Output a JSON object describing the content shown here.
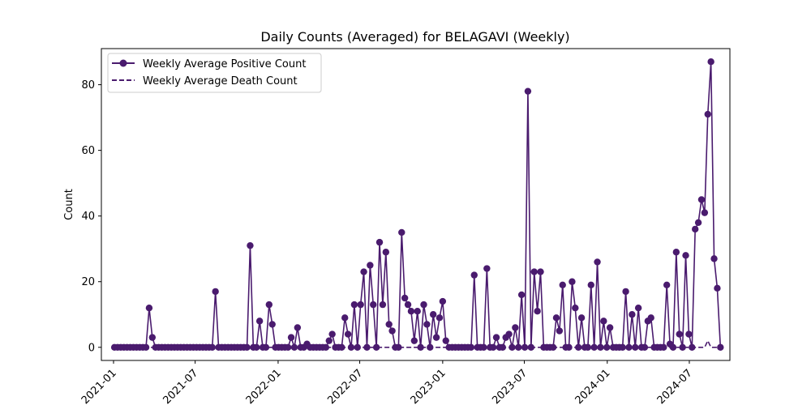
{
  "chart_data": {
    "type": "line",
    "title": "Daily Counts (Averaged) for BELAGAVI (Weekly)",
    "xlabel": "",
    "ylabel": "Count",
    "ylim": [
      -4,
      91
    ],
    "xlim": [
      "2020-12-05",
      "2024-09-29"
    ],
    "x_ticks": [
      "2021-01-01",
      "2021-07-01",
      "2022-01-01",
      "2022-07-01",
      "2023-01-01",
      "2023-07-01",
      "2024-01-01",
      "2024-07-01"
    ],
    "x_tick_labels": [
      "2021-01",
      "2021-07",
      "2022-01",
      "2022-07",
      "2023-01",
      "2023-07",
      "2024-01",
      "2024-07"
    ],
    "y_ticks": [
      0,
      20,
      40,
      60,
      80
    ],
    "grid": false,
    "legend_position": "top-left",
    "series": [
      {
        "name": "Weekly Average Positive Count",
        "style": "solid-marker",
        "color": "#4a1b6e",
        "points": [
          [
            "2021-01-03",
            0
          ],
          [
            "2021-01-10",
            0
          ],
          [
            "2021-01-17",
            0
          ],
          [
            "2021-01-24",
            0
          ],
          [
            "2021-01-31",
            0
          ],
          [
            "2021-02-07",
            0
          ],
          [
            "2021-02-14",
            0
          ],
          [
            "2021-02-21",
            0
          ],
          [
            "2021-02-28",
            0
          ],
          [
            "2021-03-07",
            0
          ],
          [
            "2021-03-14",
            0
          ],
          [
            "2021-03-21",
            12
          ],
          [
            "2021-03-28",
            3
          ],
          [
            "2021-04-04",
            0
          ],
          [
            "2021-04-11",
            0
          ],
          [
            "2021-04-18",
            0
          ],
          [
            "2021-04-25",
            0
          ],
          [
            "2021-05-02",
            0
          ],
          [
            "2021-05-09",
            0
          ],
          [
            "2021-05-16",
            0
          ],
          [
            "2021-05-23",
            0
          ],
          [
            "2021-05-30",
            0
          ],
          [
            "2021-06-06",
            0
          ],
          [
            "2021-06-13",
            0
          ],
          [
            "2021-06-20",
            0
          ],
          [
            "2021-06-27",
            0
          ],
          [
            "2021-07-04",
            0
          ],
          [
            "2021-07-11",
            0
          ],
          [
            "2021-07-18",
            0
          ],
          [
            "2021-07-25",
            0
          ],
          [
            "2021-08-01",
            0
          ],
          [
            "2021-08-08",
            0
          ],
          [
            "2021-08-15",
            17
          ],
          [
            "2021-08-22",
            0
          ],
          [
            "2021-08-29",
            0
          ],
          [
            "2021-09-05",
            0
          ],
          [
            "2021-09-12",
            0
          ],
          [
            "2021-09-19",
            0
          ],
          [
            "2021-09-26",
            0
          ],
          [
            "2021-10-03",
            0
          ],
          [
            "2021-10-10",
            0
          ],
          [
            "2021-10-17",
            0
          ],
          [
            "2021-10-24",
            0
          ],
          [
            "2021-10-31",
            31
          ],
          [
            "2021-11-07",
            0
          ],
          [
            "2021-11-14",
            0
          ],
          [
            "2021-11-21",
            8
          ],
          [
            "2021-11-28",
            0
          ],
          [
            "2021-12-05",
            0
          ],
          [
            "2021-12-12",
            13
          ],
          [
            "2021-12-19",
            7
          ],
          [
            "2021-12-26",
            0
          ],
          [
            "2022-01-02",
            0
          ],
          [
            "2022-01-09",
            0
          ],
          [
            "2022-01-16",
            0
          ],
          [
            "2022-01-23",
            0
          ],
          [
            "2022-01-30",
            3
          ],
          [
            "2022-02-06",
            0
          ],
          [
            "2022-02-13",
            6
          ],
          [
            "2022-02-20",
            0
          ],
          [
            "2022-02-27",
            0
          ],
          [
            "2022-03-06",
            1
          ],
          [
            "2022-03-13",
            0
          ],
          [
            "2022-03-20",
            0
          ],
          [
            "2022-03-27",
            0
          ],
          [
            "2022-04-03",
            0
          ],
          [
            "2022-04-10",
            0
          ],
          [
            "2022-04-17",
            0
          ],
          [
            "2022-04-24",
            2
          ],
          [
            "2022-05-01",
            4
          ],
          [
            "2022-05-08",
            0
          ],
          [
            "2022-05-15",
            0
          ],
          [
            "2022-05-22",
            0
          ],
          [
            "2022-05-29",
            9
          ],
          [
            "2022-06-05",
            4
          ],
          [
            "2022-06-12",
            0
          ],
          [
            "2022-06-19",
            13
          ],
          [
            "2022-06-26",
            0
          ],
          [
            "2022-07-03",
            13
          ],
          [
            "2022-07-10",
            23
          ],
          [
            "2022-07-17",
            0
          ],
          [
            "2022-07-24",
            25
          ],
          [
            "2022-07-31",
            13
          ],
          [
            "2022-08-07",
            0
          ],
          [
            "2022-08-14",
            32
          ],
          [
            "2022-08-21",
            13
          ],
          [
            "2022-08-28",
            29
          ],
          [
            "2022-09-04",
            7
          ],
          [
            "2022-09-11",
            5
          ],
          [
            "2022-09-18",
            0
          ],
          [
            "2022-09-25",
            0
          ],
          [
            "2022-10-02",
            35
          ],
          [
            "2022-10-09",
            15
          ],
          [
            "2022-10-16",
            13
          ],
          [
            "2022-10-23",
            11
          ],
          [
            "2022-10-30",
            2
          ],
          [
            "2022-11-06",
            11
          ],
          [
            "2022-11-13",
            0
          ],
          [
            "2022-11-20",
            13
          ],
          [
            "2022-11-27",
            7
          ],
          [
            "2022-12-04",
            0
          ],
          [
            "2022-12-11",
            10
          ],
          [
            "2022-12-18",
            3
          ],
          [
            "2022-12-25",
            9
          ],
          [
            "2023-01-01",
            14
          ],
          [
            "2023-01-08",
            2
          ],
          [
            "2023-01-15",
            0
          ],
          [
            "2023-01-22",
            0
          ],
          [
            "2023-01-29",
            0
          ],
          [
            "2023-02-05",
            0
          ],
          [
            "2023-02-12",
            0
          ],
          [
            "2023-02-19",
            0
          ],
          [
            "2023-02-26",
            0
          ],
          [
            "2023-03-05",
            0
          ],
          [
            "2023-03-12",
            22
          ],
          [
            "2023-03-19",
            0
          ],
          [
            "2023-03-26",
            0
          ],
          [
            "2023-04-02",
            0
          ],
          [
            "2023-04-09",
            24
          ],
          [
            "2023-04-16",
            0
          ],
          [
            "2023-04-23",
            0
          ],
          [
            "2023-04-30",
            3
          ],
          [
            "2023-05-07",
            0
          ],
          [
            "2023-05-14",
            0
          ],
          [
            "2023-05-21",
            3
          ],
          [
            "2023-05-28",
            4
          ],
          [
            "2023-06-04",
            0
          ],
          [
            "2023-06-11",
            6
          ],
          [
            "2023-06-18",
            0
          ],
          [
            "2023-06-25",
            16
          ],
          [
            "2023-07-02",
            0
          ],
          [
            "2023-07-09",
            78
          ],
          [
            "2023-07-16",
            0
          ],
          [
            "2023-07-23",
            23
          ],
          [
            "2023-07-30",
            11
          ],
          [
            "2023-08-06",
            23
          ],
          [
            "2023-08-13",
            0
          ],
          [
            "2023-08-20",
            0
          ],
          [
            "2023-08-27",
            0
          ],
          [
            "2023-09-03",
            0
          ],
          [
            "2023-09-10",
            9
          ],
          [
            "2023-09-17",
            5
          ],
          [
            "2023-09-24",
            19
          ],
          [
            "2023-10-01",
            0
          ],
          [
            "2023-10-08",
            0
          ],
          [
            "2023-10-15",
            20
          ],
          [
            "2023-10-22",
            12
          ],
          [
            "2023-10-29",
            0
          ],
          [
            "2023-11-05",
            9
          ],
          [
            "2023-11-12",
            0
          ],
          [
            "2023-11-19",
            0
          ],
          [
            "2023-11-26",
            19
          ],
          [
            "2023-12-03",
            0
          ],
          [
            "2023-12-10",
            26
          ],
          [
            "2023-12-17",
            0
          ],
          [
            "2023-12-24",
            8
          ],
          [
            "2023-12-31",
            0
          ],
          [
            "2024-01-07",
            6
          ],
          [
            "2024-01-14",
            0
          ],
          [
            "2024-01-21",
            0
          ],
          [
            "2024-01-28",
            0
          ],
          [
            "2024-02-04",
            0
          ],
          [
            "2024-02-11",
            17
          ],
          [
            "2024-02-18",
            0
          ],
          [
            "2024-02-25",
            10
          ],
          [
            "2024-03-03",
            0
          ],
          [
            "2024-03-10",
            12
          ],
          [
            "2024-03-17",
            0
          ],
          [
            "2024-03-24",
            0
          ],
          [
            "2024-03-31",
            8
          ],
          [
            "2024-04-07",
            9
          ],
          [
            "2024-04-14",
            0
          ],
          [
            "2024-04-21",
            0
          ],
          [
            "2024-04-28",
            0
          ],
          [
            "2024-05-05",
            0
          ],
          [
            "2024-05-12",
            19
          ],
          [
            "2024-05-19",
            1
          ],
          [
            "2024-05-26",
            0
          ],
          [
            "2024-06-02",
            29
          ],
          [
            "2024-06-09",
            4
          ],
          [
            "2024-06-16",
            0
          ],
          [
            "2024-06-23",
            28
          ],
          [
            "2024-06-30",
            4
          ],
          [
            "2024-07-07",
            0
          ],
          [
            "2024-07-14",
            36
          ],
          [
            "2024-07-21",
            38
          ],
          [
            "2024-07-28",
            45
          ],
          [
            "2024-08-04",
            41
          ],
          [
            "2024-08-11",
            71
          ],
          [
            "2024-08-18",
            87
          ],
          [
            "2024-08-25",
            27
          ],
          [
            "2024-09-01",
            18
          ],
          [
            "2024-09-08",
            0
          ]
        ]
      },
      {
        "name": "Weekly Average Death Count",
        "style": "dashed",
        "color": "#4a1b6e",
        "points": [
          [
            "2021-01-03",
            0
          ],
          [
            "2024-08-04",
            0
          ],
          [
            "2024-08-11",
            2
          ],
          [
            "2024-08-18",
            0
          ],
          [
            "2024-09-08",
            0
          ]
        ]
      }
    ]
  }
}
